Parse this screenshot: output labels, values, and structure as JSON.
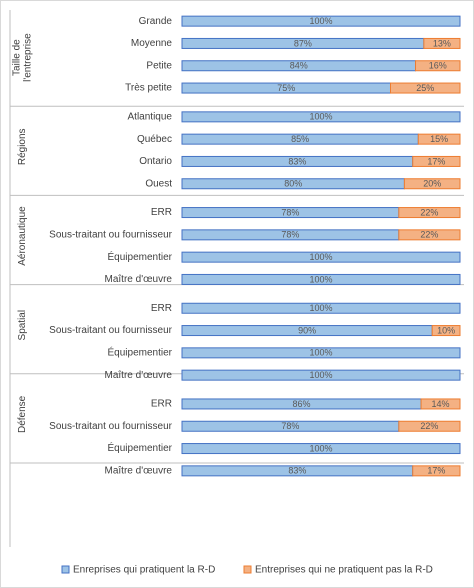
{
  "chart_data": {
    "type": "bar",
    "stacked": true,
    "orientation": "horizontal",
    "categories": [
      "Grande",
      "Moyenne",
      "Petite",
      "Très petite",
      "Atlantique",
      "Québec",
      "Ontario",
      "Ouest",
      "ERR",
      "Sous-traitant ou fournisseur",
      "Équipementier",
      "Maître d'œuvre",
      "ERR",
      "Sous-traitant ou fournisseur",
      "Équipementier",
      "Maître d'œuvre",
      "ERR",
      "Sous-traitant ou fournisseur",
      "Équipementier",
      "Maître d'œuvre"
    ],
    "groups": [
      {
        "label": [
          "Taille de",
          "l'entreprise"
        ],
        "size": 4
      },
      {
        "label": [
          "Régions"
        ],
        "size": 4
      },
      {
        "label": [
          "Aéronautique"
        ],
        "size": 4
      },
      {
        "label": [
          "Spatial"
        ],
        "size": 4
      },
      {
        "label": [
          "Défense"
        ],
        "size": 4
      }
    ],
    "series": [
      {
        "name": "Enreprises qui pratiquent la R-D",
        "color": "#9dc3e6",
        "edge": "#4472c4",
        "values": [
          100,
          87,
          84,
          75,
          100,
          85,
          83,
          80,
          78,
          78,
          100,
          100,
          100,
          90,
          100,
          100,
          86,
          78,
          100,
          83
        ],
        "value_labels": [
          "100%",
          "87%",
          "84%",
          "75%",
          "100%",
          "85%",
          "83%",
          "80%",
          "78%",
          "78%",
          "100%",
          "100%",
          "100%",
          "90%",
          "100%",
          "100%",
          "86%",
          "78%",
          "100%",
          "83%"
        ]
      },
      {
        "name": "Entreprises qui ne pratiquent pas la R-D",
        "color": "#f4b183",
        "edge": "#ed7d31",
        "values": [
          0,
          13,
          16,
          25,
          0,
          15,
          17,
          20,
          22,
          22,
          0,
          0,
          0,
          10,
          0,
          0,
          14,
          22,
          0,
          17
        ],
        "value_labels": [
          null,
          "13%",
          "16%",
          "25%",
          null,
          "15%",
          "17%",
          "20%",
          "22%",
          "22%",
          null,
          null,
          null,
          "10%",
          null,
          null,
          "14%",
          "22%",
          null,
          "17%"
        ]
      }
    ],
    "xlim": [
      0,
      100
    ]
  }
}
